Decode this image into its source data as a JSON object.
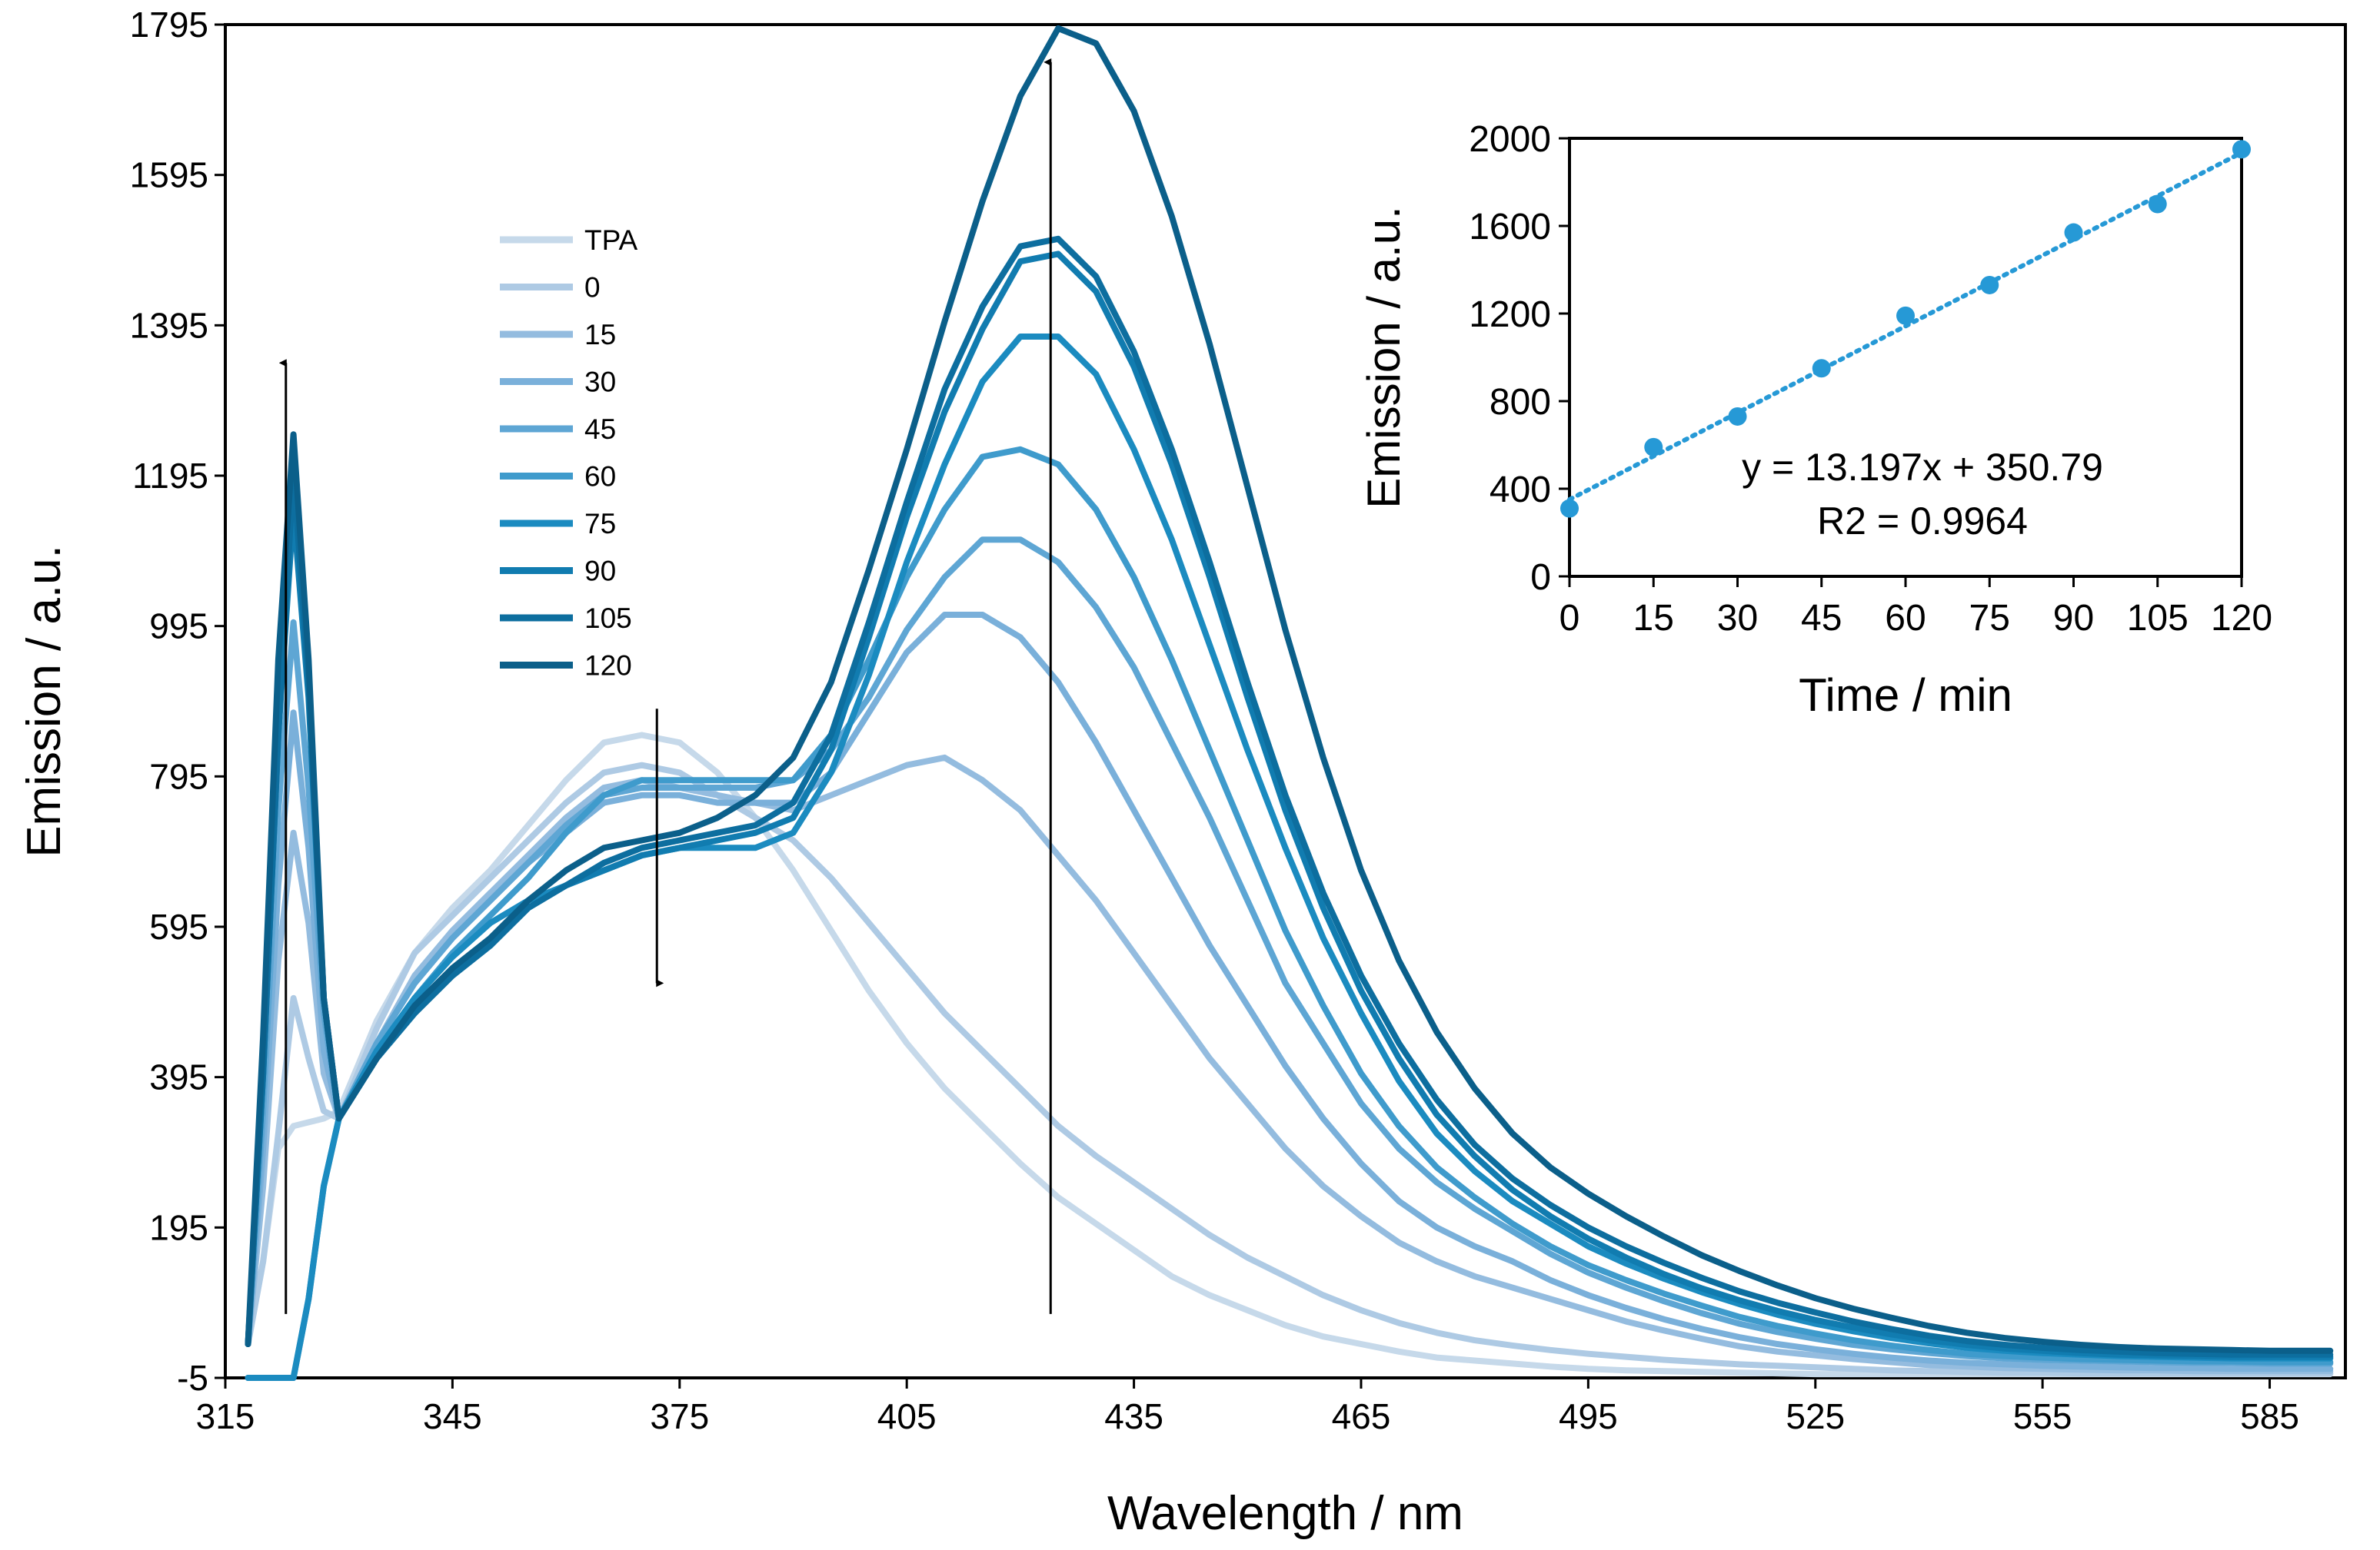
{
  "chart_data": [
    {
      "type": "line",
      "title": "",
      "xlabel": "Wavelength / nm",
      "ylabel": "Emission / a.u.",
      "xlim": [
        315,
        595
      ],
      "ylim": [
        -5,
        1795
      ],
      "x_ticks": [
        315,
        345,
        375,
        405,
        435,
        465,
        495,
        525,
        555,
        585
      ],
      "y_ticks": [
        -5,
        195,
        395,
        595,
        795,
        995,
        1195,
        1395,
        1595,
        1795
      ],
      "x_tick_labels": [
        "315",
        "345",
        "375",
        "405",
        "435",
        "465",
        "495",
        "525",
        "555",
        "585"
      ],
      "y_tick_labels": [
        "-5",
        "195",
        "395",
        "595",
        "795",
        "995",
        "1195",
        "1395",
        "1595",
        "1795"
      ],
      "legend": [
        "TPA",
        "0",
        "15",
        "30",
        "45",
        "60",
        "75",
        "90",
        "105",
        "120"
      ],
      "x": [
        318,
        320,
        322,
        324,
        326,
        328,
        330,
        335,
        340,
        345,
        350,
        355,
        360,
        365,
        370,
        375,
        380,
        385,
        390,
        395,
        400,
        405,
        410,
        415,
        420,
        425,
        430,
        435,
        440,
        445,
        450,
        455,
        460,
        465,
        470,
        475,
        480,
        485,
        490,
        495,
        500,
        505,
        510,
        515,
        520,
        525,
        530,
        535,
        540,
        545,
        550,
        555,
        560,
        565,
        570,
        575,
        580,
        585,
        590,
        593
      ],
      "series": [
        {
          "name": "TPA",
          "color": "#c6d9ea",
          "values": [
            40,
            150,
            300,
            330,
            335,
            340,
            350,
            470,
            560,
            620,
            670,
            730,
            790,
            840,
            850,
            840,
            800,
            740,
            670,
            590,
            510,
            440,
            380,
            330,
            280,
            235,
            200,
            165,
            130,
            105,
            85,
            65,
            50,
            40,
            30,
            22,
            18,
            14,
            10,
            7,
            5,
            4,
            3,
            2,
            1,
            0,
            0,
            0,
            0,
            0,
            0,
            0,
            0,
            0,
            0,
            0,
            0,
            0,
            0,
            0
          ]
        },
        {
          "name": "0",
          "color": "#aecae4",
          "values": [
            40,
            150,
            320,
            500,
            420,
            350,
            340,
            460,
            560,
            610,
            660,
            710,
            760,
            800,
            810,
            800,
            770,
            740,
            710,
            660,
            600,
            540,
            480,
            430,
            380,
            330,
            290,
            255,
            220,
            185,
            155,
            130,
            105,
            85,
            68,
            55,
            45,
            38,
            32,
            27,
            23,
            19,
            16,
            13,
            11,
            9,
            7,
            5,
            4,
            3,
            2,
            2,
            1,
            1,
            1,
            1,
            1,
            1,
            1,
            1
          ]
        },
        {
          "name": "15",
          "color": "#94bcdf",
          "values": [
            40,
            250,
            550,
            720,
            600,
            400,
            340,
            440,
            530,
            590,
            640,
            690,
            740,
            780,
            790,
            780,
            770,
            760,
            750,
            770,
            790,
            810,
            820,
            790,
            750,
            690,
            630,
            560,
            490,
            420,
            360,
            300,
            250,
            210,
            175,
            150,
            130,
            115,
            100,
            85,
            70,
            58,
            47,
            37,
            30,
            25,
            20,
            16,
            12,
            10,
            8,
            7,
            6,
            5,
            5,
            4,
            4,
            4,
            4,
            4
          ]
        },
        {
          "name": "30",
          "color": "#7ab0da",
          "values": [
            40,
            300,
            650,
            880,
            700,
            430,
            340,
            440,
            520,
            580,
            630,
            680,
            720,
            760,
            770,
            770,
            760,
            760,
            760,
            800,
            880,
            960,
            1010,
            1010,
            980,
            920,
            840,
            750,
            660,
            570,
            490,
            410,
            340,
            280,
            230,
            195,
            170,
            150,
            125,
            105,
            88,
            73,
            60,
            49,
            40,
            33,
            27,
            22,
            18,
            15,
            13,
            11,
            10,
            9,
            8,
            8,
            7,
            7,
            7,
            7
          ]
        },
        {
          "name": "45",
          "color": "#5ea6d4",
          "values": [
            40,
            350,
            750,
            1000,
            780,
            480,
            340,
            440,
            520,
            580,
            630,
            680,
            730,
            770,
            780,
            780,
            780,
            780,
            790,
            830,
            900,
            990,
            1060,
            1110,
            1110,
            1080,
            1020,
            940,
            840,
            740,
            630,
            520,
            440,
            360,
            300,
            255,
            220,
            190,
            160,
            135,
            115,
            97,
            81,
            67,
            56,
            47,
            39,
            33,
            28,
            24,
            21,
            19,
            18,
            17,
            16,
            15,
            15,
            14,
            14,
            14
          ]
        },
        {
          "name": "60",
          "color": "#3f9bcc",
          "values": [
            -5,
            -5,
            -5,
            -5,
            100,
            250,
            340,
            430,
            500,
            560,
            610,
            660,
            720,
            770,
            790,
            790,
            790,
            790,
            790,
            850,
            950,
            1060,
            1150,
            1220,
            1230,
            1210,
            1150,
            1060,
            950,
            830,
            710,
            590,
            490,
            400,
            330,
            275,
            235,
            200,
            170,
            145,
            125,
            107,
            91,
            76,
            64,
            54,
            45,
            38,
            32,
            27,
            24,
            22,
            20,
            19,
            18,
            17,
            17,
            16,
            16,
            16
          ]
        },
        {
          "name": "75",
          "color": "#1b8bc0",
          "values": [
            -5,
            -5,
            -5,
            -5,
            100,
            250,
            340,
            430,
            500,
            555,
            600,
            630,
            650,
            670,
            690,
            700,
            700,
            700,
            720,
            800,
            930,
            1080,
            1210,
            1320,
            1380,
            1380,
            1330,
            1230,
            1110,
            970,
            830,
            700,
            580,
            480,
            390,
            320,
            270,
            230,
            200,
            170,
            147,
            127,
            109,
            93,
            79,
            67,
            57,
            48,
            41,
            35,
            31,
            28,
            26,
            24,
            23,
            22,
            21,
            21,
            21,
            21
          ]
        },
        {
          "name": "90",
          "color": "#117cb0",
          "values": [
            40,
            400,
            850,
            1150,
            900,
            500,
            340,
            420,
            480,
            530,
            570,
            620,
            650,
            670,
            690,
            700,
            710,
            720,
            740,
            830,
            980,
            1140,
            1280,
            1390,
            1480,
            1490,
            1440,
            1340,
            1210,
            1060,
            900,
            750,
            620,
            510,
            420,
            345,
            290,
            245,
            210,
            180,
            155,
            133,
            114,
            98,
            84,
            72,
            62,
            53,
            45,
            39,
            34,
            31,
            28,
            26,
            25,
            24,
            23,
            23,
            23,
            23
          ]
        },
        {
          "name": "105",
          "color": "#0d6e9f",
          "values": [
            40,
            400,
            850,
            1200,
            920,
            500,
            340,
            420,
            480,
            530,
            570,
            620,
            650,
            680,
            700,
            710,
            720,
            730,
            760,
            850,
            1000,
            1160,
            1310,
            1420,
            1500,
            1510,
            1460,
            1360,
            1230,
            1080,
            920,
            770,
            640,
            530,
            440,
            365,
            305,
            260,
            225,
            195,
            170,
            148,
            128,
            110,
            95,
            82,
            70,
            60,
            51,
            44,
            39,
            35,
            32,
            30,
            28,
            27,
            26,
            26,
            26,
            26
          ]
        },
        {
          "name": "120",
          "color": "#0b5f8a",
          "values": [
            40,
            450,
            950,
            1250,
            950,
            500,
            340,
            420,
            490,
            540,
            580,
            630,
            670,
            700,
            710,
            720,
            740,
            770,
            820,
            920,
            1070,
            1230,
            1400,
            1560,
            1700,
            1790,
            1770,
            1680,
            1540,
            1370,
            1180,
            990,
            820,
            670,
            550,
            455,
            380,
            320,
            275,
            240,
            210,
            183,
            158,
            137,
            118,
            101,
            87,
            75,
            64,
            55,
            48,
            43,
            39,
            36,
            34,
            33,
            32,
            31,
            31,
            31
          ]
        }
      ],
      "annotations": [
        {
          "type": "arrow",
          "direction": "up",
          "x": 323,
          "from": 80,
          "to": 1345
        },
        {
          "type": "arrow",
          "direction": "down",
          "x": 372,
          "from": 885,
          "to": 520
        },
        {
          "type": "arrow",
          "direction": "up",
          "x": 424,
          "from": 80,
          "to": 1745
        }
      ]
    },
    {
      "type": "scatter",
      "title": "",
      "xlabel": "Time / min",
      "ylabel": "Emission / a.u.",
      "xlim": [
        0,
        120
      ],
      "ylim": [
        0,
        2000
      ],
      "x_ticks": [
        0,
        15,
        30,
        45,
        60,
        75,
        90,
        105,
        120
      ],
      "y_ticks": [
        0,
        400,
        800,
        1200,
        1600,
        2000
      ],
      "x_tick_labels": [
        "0",
        "15",
        "30",
        "45",
        "60",
        "75",
        "90",
        "105",
        "120"
      ],
      "y_tick_labels": [
        "0",
        "400",
        "800",
        "1200",
        "1600",
        "2000"
      ],
      "x": [
        0,
        15,
        30,
        45,
        60,
        75,
        90,
        105,
        120
      ],
      "y": [
        310,
        590,
        730,
        950,
        1190,
        1330,
        1570,
        1700,
        1950
      ],
      "color": "#2699d6",
      "trendline": {
        "slope": 13.197,
        "intercept": 350.79,
        "style": "dotted"
      },
      "equation_text": "y = 13.197x + 350.79",
      "r2_text": "R2 = 0.9964"
    }
  ]
}
